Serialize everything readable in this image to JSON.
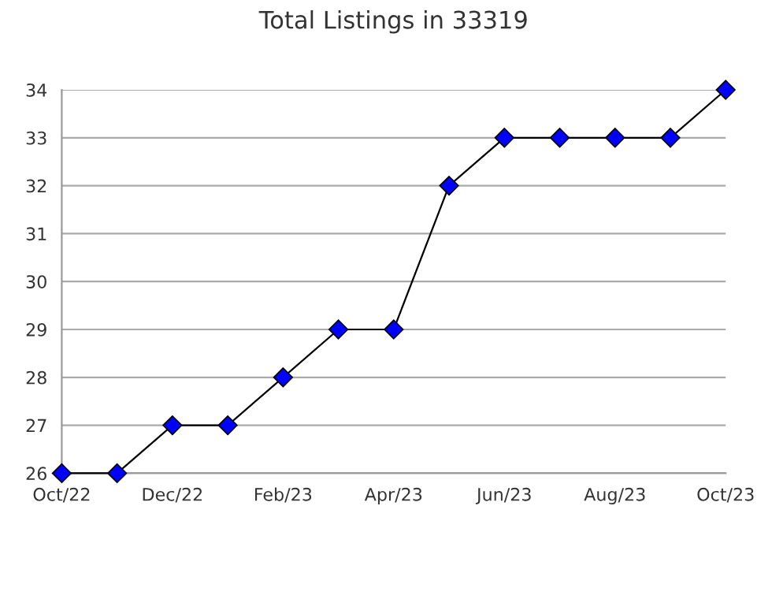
{
  "chart_data": {
    "type": "line",
    "title": "Total Listings in 33319",
    "categories": [
      "Oct/22",
      null,
      "Dec/22",
      null,
      "Feb/23",
      null,
      "Apr/23",
      null,
      "Jun/23",
      null,
      "Aug/23",
      null,
      "Oct/23"
    ],
    "series": [
      {
        "color": "#0000ff",
        "values": [
          26,
          26,
          27,
          27,
          28,
          29,
          29,
          32,
          33,
          33,
          33,
          33,
          34
        ]
      }
    ],
    "ylim": [
      26,
      34
    ],
    "yticks": [
      26,
      27,
      28,
      29,
      30,
      31,
      32,
      33,
      34
    ],
    "grid": "y",
    "marker": "diamond",
    "line_style": "solid"
  }
}
